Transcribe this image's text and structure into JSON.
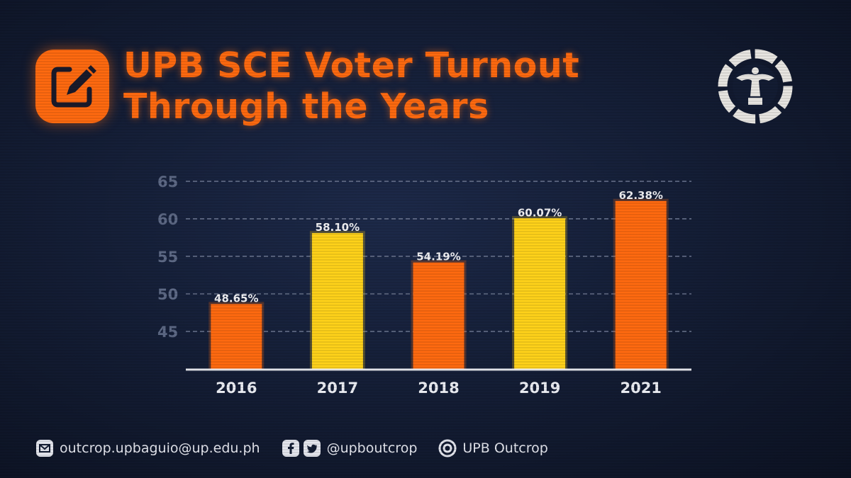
{
  "header": {
    "title_line1": "UPB SCE Voter Turnout",
    "title_line2": "Through the Years"
  },
  "icons": {
    "title": "edit-note-icon",
    "logo": "upb-outcrop-logo",
    "email": "mail-icon",
    "facebook": "facebook-icon",
    "twitter": "twitter-icon",
    "instagram": "instagram-icon"
  },
  "colors": {
    "accent": "#ff6a10",
    "bar_orange": "#ff6a10",
    "bar_yellow": "#ffd21a",
    "tick_text": "#5e6a86",
    "label_text": "#f2f2f5"
  },
  "chart_data": {
    "type": "bar",
    "categories": [
      "2016",
      "2017",
      "2018",
      "2019",
      "2021"
    ],
    "values": [
      48.65,
      58.1,
      54.19,
      60.07,
      62.38
    ],
    "data_labels": [
      "48.65%",
      "58.10%",
      "54.19%",
      "60.07%",
      "62.38%"
    ],
    "bar_colors": [
      "#ff6a10",
      "#ffd21a",
      "#ff6a10",
      "#ffd21a",
      "#ff6a10"
    ],
    "title": "",
    "xlabel": "",
    "ylabel": "",
    "ylim": [
      40,
      65
    ],
    "yticks": [
      45,
      50,
      55,
      60,
      65
    ],
    "grid": true,
    "legend": "none"
  },
  "footer": {
    "email": "outcrop.upbaguio@up.edu.ph",
    "social_handle": "@upboutcrop",
    "page_name": "UPB Outcrop"
  }
}
